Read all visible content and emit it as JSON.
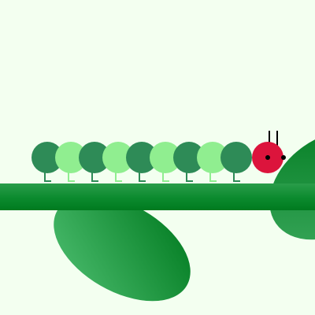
{
  "scene": {
    "name": "caterpillar-on-branch",
    "colors": {
      "background": "#f3fff0",
      "body_dark": "#2e8b57",
      "body_light": "#90ee90",
      "leg_dark": "#2e8b57",
      "leg_light": "#90ee90",
      "head": "#dc143c",
      "eye": "#000000",
      "antenna": "#000000",
      "branch_light": "#2a9d4a",
      "branch_dark": "#007a1f",
      "leaf_light": "#4cbd6f",
      "leaf_dark": "#007a1f"
    },
    "caterpillar": {
      "segment_count": 9,
      "segment_pattern": [
        "dark",
        "light",
        "dark",
        "light",
        "dark",
        "light",
        "dark",
        "light",
        "dark"
      ],
      "head_icon": "caterpillar-head-icon"
    }
  }
}
